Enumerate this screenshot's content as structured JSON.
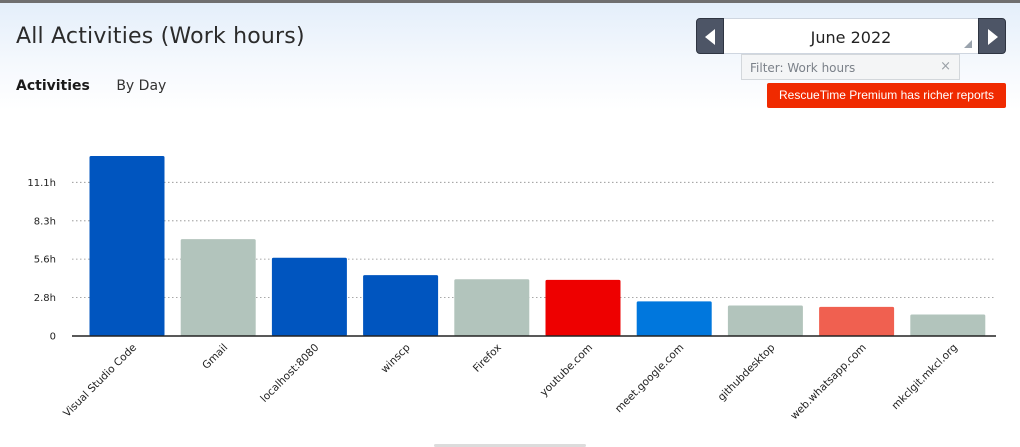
{
  "page": {
    "title": "All Activities (Work hours)"
  },
  "tabs": [
    {
      "label": "Activities",
      "active": true
    },
    {
      "label": "By Day",
      "active": false
    }
  ],
  "date_nav": {
    "label": "June 2022",
    "prev_icon": "chevron-left-icon",
    "next_icon": "chevron-right-icon"
  },
  "filter": {
    "text": "Filter: Work hours",
    "clear_glyph": "×"
  },
  "premium": {
    "label": "RescueTime Premium has richer reports",
    "color": "#f02a00"
  },
  "chart_data": {
    "type": "bar",
    "categories": [
      "Visual Studio Code",
      "Gmail",
      "localhost:8080",
      "winscp",
      "Firefox",
      "youtube.com",
      "meet.google.com",
      "githubdesktop",
      "web.whatsapp.com",
      "mkclgit.mkcl.org"
    ],
    "values": [
      13.0,
      7.0,
      5.65,
      4.4,
      4.1,
      4.05,
      2.5,
      2.2,
      2.1,
      1.55
    ],
    "colors": [
      "#0055bf",
      "#b2c4bc",
      "#0055bf",
      "#0055bf",
      "#b2c4bc",
      "#ee0000",
      "#0077dd",
      "#b2c4bc",
      "#f06050",
      "#b2c4bc"
    ],
    "yticks": [
      {
        "value": 0,
        "label": "0"
      },
      {
        "value": 2.77,
        "label": "2.8h"
      },
      {
        "value": 5.55,
        "label": "5.6h"
      },
      {
        "value": 8.32,
        "label": "8.3h"
      },
      {
        "value": 11.1,
        "label": "11.1h"
      }
    ],
    "ylim": [
      0,
      13
    ],
    "grid": true,
    "title": "",
    "xlabel": "",
    "ylabel": ""
  }
}
